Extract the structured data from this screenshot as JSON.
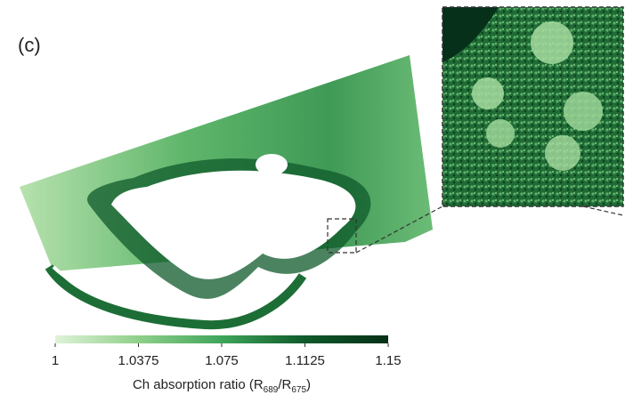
{
  "panel_label": "(c)",
  "colorbar": {
    "range": [
      1,
      1.15
    ],
    "ticks": [
      1,
      1.0375,
      1.075,
      1.1125,
      1.15
    ],
    "colors": [
      "#dff2d8",
      "#8fd08a",
      "#3fa55a",
      "#0f5a2b",
      "#062f17"
    ],
    "label": [
      "Ch absorption ratio (R",
      "689",
      "/R",
      "675",
      ")"
    ]
  }
}
